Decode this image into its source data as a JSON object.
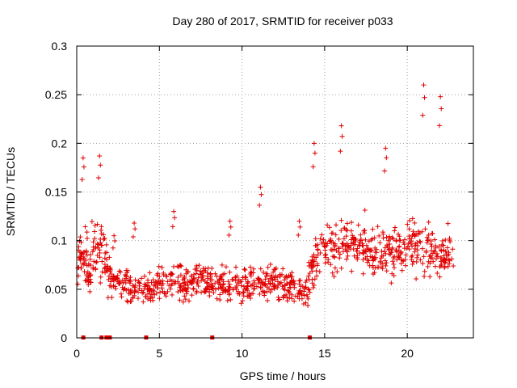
{
  "chart_data": {
    "type": "scatter",
    "title": "Day 280 of 2017, SRMTID for receiver p033",
    "xlabel": "GPS time / hours",
    "ylabel": "SRMTID / TECUs",
    "xlim": [
      0,
      24
    ],
    "ylim": [
      0,
      0.3
    ],
    "x_ticks": [
      0,
      5,
      10,
      15,
      20
    ],
    "x_tick_labels": [
      "0",
      "5",
      "10",
      "15",
      "20"
    ],
    "y_ticks": [
      0,
      0.05,
      0.1,
      0.15,
      0.2,
      0.25,
      0.3
    ],
    "y_tick_labels": [
      "0",
      "0.05",
      "0.1",
      "0.15",
      "0.2",
      "0.25",
      "0.3"
    ],
    "grid": true,
    "marker": "plus",
    "series_color": "#e00000",
    "baseline_markers_x": [
      0.4,
      1.5,
      1.8,
      2.0,
      4.2,
      8.2,
      14.1
    ],
    "segments": [
      {
        "x": [
          0.0,
          0.9
        ],
        "base": 0.088,
        "spread": 0.05,
        "drift": -0.02,
        "n": 60,
        "spike": 0.185
      },
      {
        "x": [
          0.9,
          1.9
        ],
        "base": 0.092,
        "spread": 0.05,
        "drift": -0.01,
        "n": 55,
        "spike": 0.187
      },
      {
        "x": [
          1.9,
          2.6
        ],
        "base": 0.06,
        "spread": 0.03,
        "drift": 0.0,
        "n": 35,
        "spike": 0.105
      },
      {
        "x": [
          2.6,
          4.6
        ],
        "base": 0.052,
        "spread": 0.028,
        "drift": 0.0,
        "n": 90,
        "spike": 0.118
      },
      {
        "x": [
          4.6,
          7.5
        ],
        "base": 0.055,
        "spread": 0.03,
        "drift": 0.005,
        "n": 130,
        "spike": 0.13
      },
      {
        "x": [
          7.5,
          10.5
        ],
        "base": 0.058,
        "spread": 0.03,
        "drift": -0.005,
        "n": 140,
        "spike": 0.12
      },
      {
        "x": [
          10.5,
          12.5
        ],
        "base": 0.057,
        "spread": 0.032,
        "drift": 0.0,
        "n": 90,
        "spike": 0.155
      },
      {
        "x": [
          12.5,
          14.0
        ],
        "base": 0.055,
        "spread": 0.03,
        "drift": -0.01,
        "n": 70,
        "spike": 0.12
      },
      {
        "x": [
          14.0,
          15.0
        ],
        "base": 0.065,
        "spread": 0.04,
        "drift": 0.03,
        "n": 50,
        "spike": 0.2
      },
      {
        "x": [
          15.0,
          17.5
        ],
        "base": 0.095,
        "spread": 0.045,
        "drift": 0.0,
        "n": 120,
        "spike": 0.218
      },
      {
        "x": [
          17.5,
          20.0
        ],
        "base": 0.09,
        "spread": 0.04,
        "drift": 0.0,
        "n": 120,
        "spike": 0.195
      },
      {
        "x": [
          20.0,
          21.5
        ],
        "base": 0.1,
        "spread": 0.045,
        "drift": -0.01,
        "n": 70,
        "spike": 0.26
      },
      {
        "x": [
          21.5,
          22.8
        ],
        "base": 0.08,
        "spread": 0.04,
        "drift": 0.005,
        "n": 60,
        "spike": 0.248
      }
    ]
  }
}
